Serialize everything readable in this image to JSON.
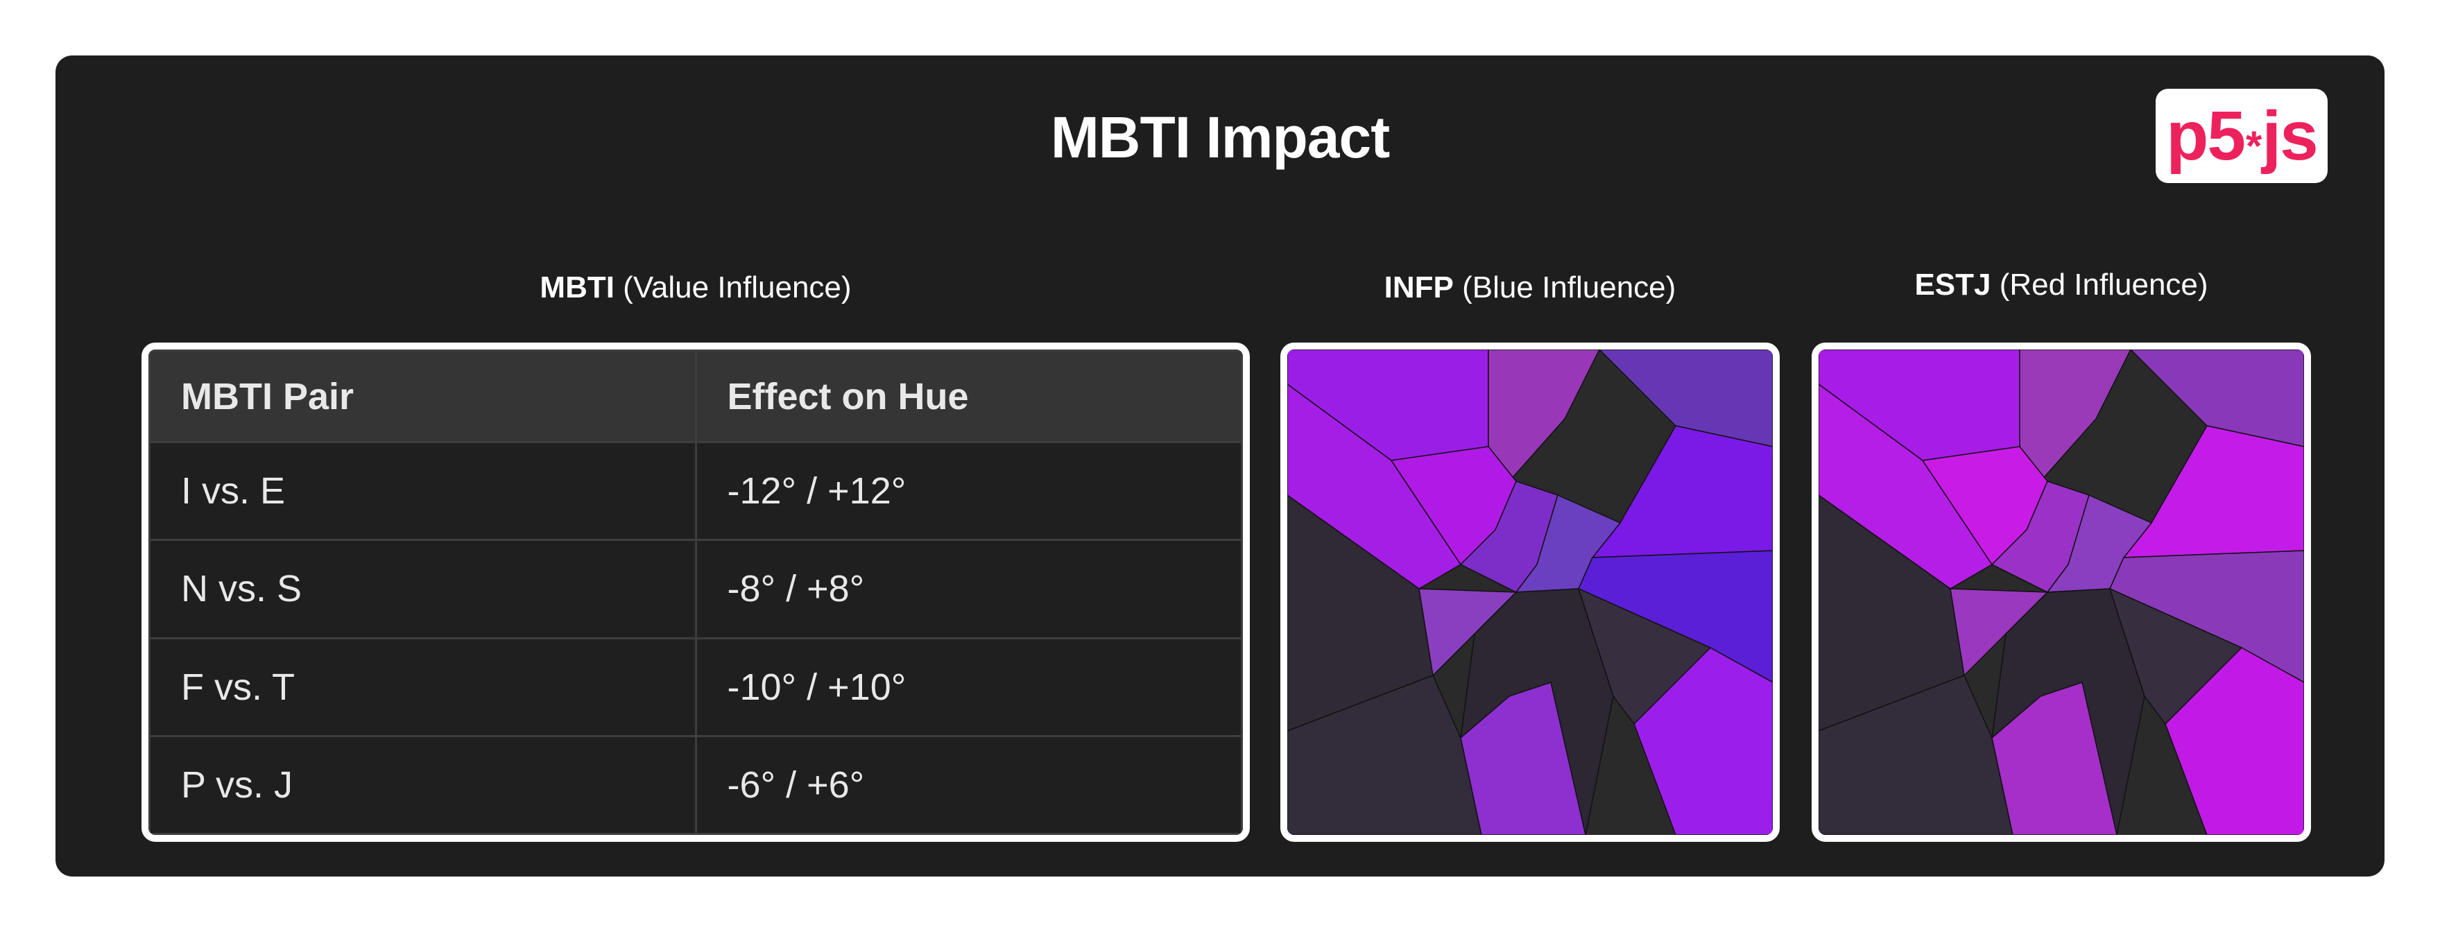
{
  "title": "MBTI Impact",
  "logo": {
    "left": "p5",
    "star": "*",
    "right": "js"
  },
  "captions": {
    "table": {
      "bold": "MBTI",
      "rest": " (Value Influence)"
    },
    "infp": {
      "bold": "INFP",
      "rest": " (Blue Influence)"
    },
    "estj": {
      "bold": "ESTJ",
      "rest": " (Red Influence)"
    }
  },
  "table": {
    "headers": [
      "MBTI Pair",
      "Effect on Hue"
    ],
    "rows": [
      [
        "I vs. E",
        "-12° / +12°"
      ],
      [
        "N vs. S",
        "-8° / +8°"
      ],
      [
        "F vs. T",
        "-10° / +10°"
      ],
      [
        "P vs. J",
        "-6° / +6°"
      ]
    ]
  },
  "colors": {
    "panel": "#1e1e1e",
    "logo_accent": "#ed225d",
    "infp_fills": [
      "#8a1fd6",
      "#9b1ee6",
      "#9838b8",
      "#6637b4",
      "#7b19e6",
      "#a51ee6",
      "#b01ae6",
      "#7d2ec8",
      "#2f2a35",
      "#6a3fc0",
      "#8a3fc0",
      "#5a1fd6",
      "#332c3b",
      "#2c2733",
      "#372f3f",
      "#8e2fd0",
      "#9b1eeb"
    ],
    "estj_fills": [
      "#a21fd8",
      "#a81ce8",
      "#9a3ab8",
      "#8838b8",
      "#c41ce8",
      "#b51ee6",
      "#c81ce6",
      "#9a32c8",
      "#2f2a35",
      "#8a3fc0",
      "#9a38c0",
      "#8a3ab8",
      "#332c3b",
      "#2c2733",
      "#372f3f",
      "#a52fc8",
      "#c21ae6"
    ]
  }
}
